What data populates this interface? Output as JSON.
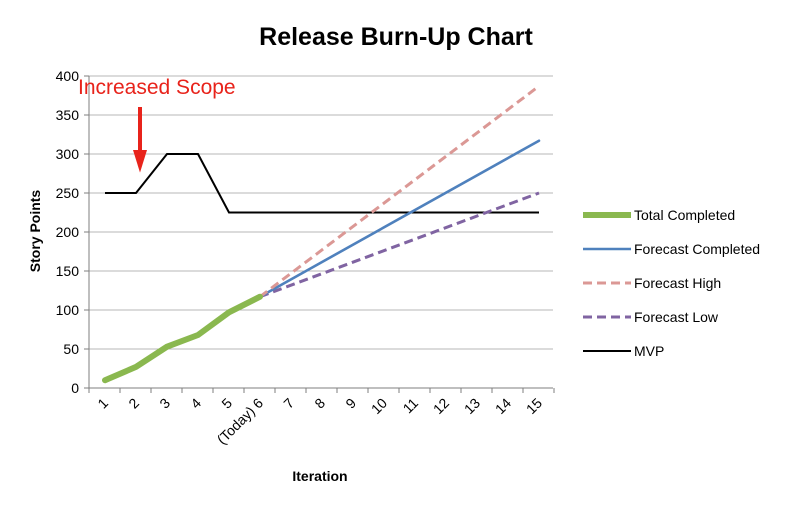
{
  "chart_data": {
    "type": "line",
    "title": "Release Burn-Up Chart",
    "xlabel": "Iteration",
    "ylabel": "Story Points",
    "x": [
      1,
      2,
      3,
      4,
      5,
      6,
      7,
      8,
      9,
      10,
      11,
      12,
      13,
      14,
      15
    ],
    "xtick_labels": [
      "1",
      "2",
      "3",
      "4",
      "5",
      "(Today) 6",
      "7",
      "8",
      "9",
      "10",
      "11",
      "12",
      "13",
      "14",
      "15"
    ],
    "ylim": [
      0,
      400
    ],
    "yticks": [
      0,
      50,
      100,
      150,
      200,
      250,
      300,
      350,
      400
    ],
    "grid": true,
    "legend_position": "right",
    "series": [
      {
        "name": "Total Completed",
        "color": "#8ab84f",
        "dash": "solid",
        "points": [
          [
            1,
            10
          ],
          [
            2,
            27
          ],
          [
            3,
            53
          ],
          [
            4,
            68
          ],
          [
            5,
            97
          ],
          [
            6,
            117
          ]
        ]
      },
      {
        "name": "Forecast Completed",
        "color": "#4f81bd",
        "dash": "solid",
        "points": [
          [
            6,
            117
          ],
          [
            15,
            317
          ]
        ]
      },
      {
        "name": "Forecast High",
        "color": "#db9895",
        "dash": "dashed",
        "points": [
          [
            6,
            117
          ],
          [
            15,
            387
          ]
        ]
      },
      {
        "name": "Forecast Low",
        "color": "#8064a2",
        "dash": "dashed",
        "points": [
          [
            6,
            117
          ],
          [
            15,
            250
          ]
        ]
      },
      {
        "name": "MVP",
        "color": "#000000",
        "dash": "solid",
        "points": [
          [
            1,
            250
          ],
          [
            2,
            250
          ],
          [
            3,
            300
          ],
          [
            4,
            300
          ],
          [
            5,
            225
          ],
          [
            15,
            225
          ]
        ]
      }
    ],
    "annotations": [
      {
        "text": "Increased Scope",
        "x": 2,
        "y": 280,
        "color": "#e8231b",
        "marker": "arrow-down"
      }
    ]
  }
}
